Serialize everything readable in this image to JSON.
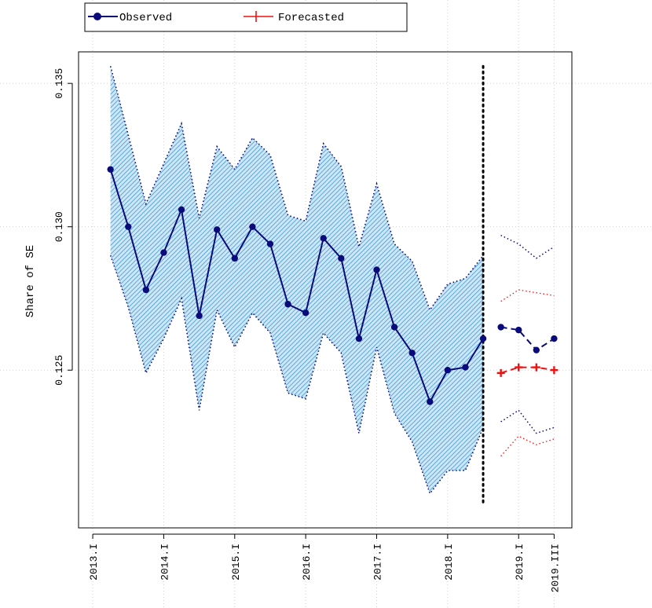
{
  "chart_data": {
    "type": "line",
    "title": "",
    "xlabel": "",
    "ylabel": "Share of SE",
    "ylim": [
      0.1195,
      0.1361
    ],
    "grid": true,
    "legend": {
      "placement": "top-left",
      "entries": [
        {
          "name": "Observed",
          "color": "#0a0a7a",
          "marker": "circle"
        },
        {
          "name": "Forecasted",
          "color": "#ee1111",
          "marker": "plus"
        }
      ]
    },
    "y_ticks": [
      {
        "value": 0.125,
        "label": "0.125"
      },
      {
        "value": 0.13,
        "label": "0.130"
      },
      {
        "value": 0.135,
        "label": "0.135"
      }
    ],
    "x_ticks": [
      {
        "value": 2013.0,
        "label": "2013.I"
      },
      {
        "value": 2014.0,
        "label": "2014.I"
      },
      {
        "value": 2015.0,
        "label": "2015.I"
      },
      {
        "value": 2016.0,
        "label": "2016.I"
      },
      {
        "value": 2017.0,
        "label": "2017.I"
      },
      {
        "value": 2018.0,
        "label": "2018.I"
      },
      {
        "value": 2019.0,
        "label": "2019.I"
      },
      {
        "value": 2019.5,
        "label": "2019.III"
      }
    ],
    "xlim": [
      2012.8,
      2019.75
    ],
    "forecast_start": 2018.5,
    "colors": {
      "observed": "#0a0a7a",
      "forecasted": "#ee1111",
      "band_stroke": "#3b9bd6",
      "band_fill": "#cfe6f5",
      "band_edge": "#0a0a7a",
      "grid": "#d0d0d0",
      "vline": "#000000"
    },
    "observed": {
      "x": [
        2013.25,
        2013.5,
        2013.75,
        2014.0,
        2014.25,
        2014.5,
        2014.75,
        2015.0,
        2015.25,
        2015.5,
        2015.75,
        2016.0,
        2016.25,
        2016.5,
        2016.75,
        2017.0,
        2017.25,
        2017.5,
        2017.75,
        2018.0,
        2018.25,
        2018.5
      ],
      "y": [
        0.132,
        0.13,
        0.1278,
        0.1291,
        0.1306,
        0.1269,
        0.1299,
        0.1289,
        0.13,
        0.1294,
        0.1273,
        0.127,
        0.1296,
        0.1289,
        0.1261,
        0.1285,
        0.1265,
        0.1256,
        0.1239,
        0.125,
        0.1251,
        0.1261
      ]
    },
    "band": {
      "upper": [
        0.1356,
        0.1332,
        0.1308,
        0.1322,
        0.1336,
        0.1303,
        0.1328,
        0.132,
        0.1331,
        0.1325,
        0.1304,
        0.1302,
        0.1329,
        0.1321,
        0.1293,
        0.1315,
        0.1294,
        0.1288,
        0.1271,
        0.128,
        0.1282,
        0.129
      ],
      "lower": [
        0.129,
        0.1272,
        0.1249,
        0.1261,
        0.1275,
        0.1236,
        0.1271,
        0.1258,
        0.127,
        0.1263,
        0.1242,
        0.124,
        0.1263,
        0.1256,
        0.1228,
        0.1258,
        0.1235,
        0.1225,
        0.1207,
        0.1215,
        0.1215,
        0.123
      ]
    },
    "forecast": {
      "x": [
        2018.75,
        2019.0,
        2019.25,
        2019.5
      ],
      "observed": [
        0.1265,
        0.1264,
        0.1257,
        0.1261
      ],
      "observed_upper": [
        0.1297,
        0.1294,
        0.1289,
        0.1293
      ],
      "observed_lower": [
        0.1232,
        0.1236,
        0.1228,
        0.123
      ],
      "forecasted": [
        0.1249,
        0.1251,
        0.1251,
        0.125
      ],
      "forecasted_upper": [
        0.1274,
        0.1278,
        0.1277,
        0.1276
      ],
      "forecasted_lower": [
        0.122,
        0.1227,
        0.1224,
        0.1226
      ]
    }
  }
}
